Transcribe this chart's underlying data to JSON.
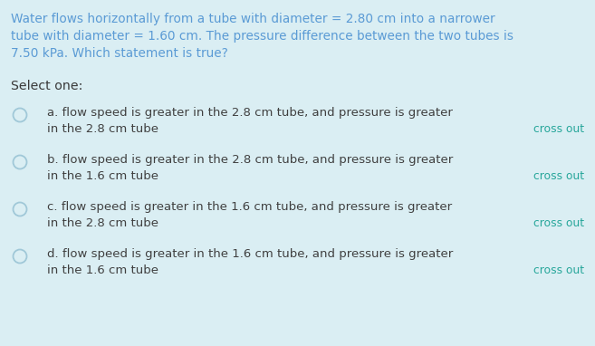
{
  "background_color": "#daeef3",
  "question_text_lines": [
    "Water flows horizontally from a tube with diameter = 2.80 cm into a narrower",
    "tube with diameter = 1.60 cm. The pressure difference between the two tubes is",
    "7.50 kPa. Which statement is true?"
  ],
  "select_label": "Select one:",
  "options": [
    {
      "line1": "a. flow speed is greater in the 2.8 cm tube, and pressure is greater",
      "line2": "in the 2.8 cm tube"
    },
    {
      "line1": "b. flow speed is greater in the 2.8 cm tube, and pressure is greater",
      "line2": "in the 1.6 cm tube"
    },
    {
      "line1": "c. flow speed is greater in the 1.6 cm tube, and pressure is greater",
      "line2": "in the 2.8 cm tube"
    },
    {
      "line1": "d. flow speed is greater in the 1.6 cm tube, and pressure is greater",
      "line2": "in the 1.6 cm tube"
    }
  ],
  "cross_out_text": "cross out",
  "question_text_color": "#5b9bd5",
  "select_color": "#3a3a3a",
  "option_text_color": "#404040",
  "circle_edge_color": "#a0c8d8",
  "cross_out_color": "#26a69a",
  "question_fontsize": 9.8,
  "select_fontsize": 10.2,
  "option_fontsize": 9.5,
  "crossout_fontsize": 8.8
}
